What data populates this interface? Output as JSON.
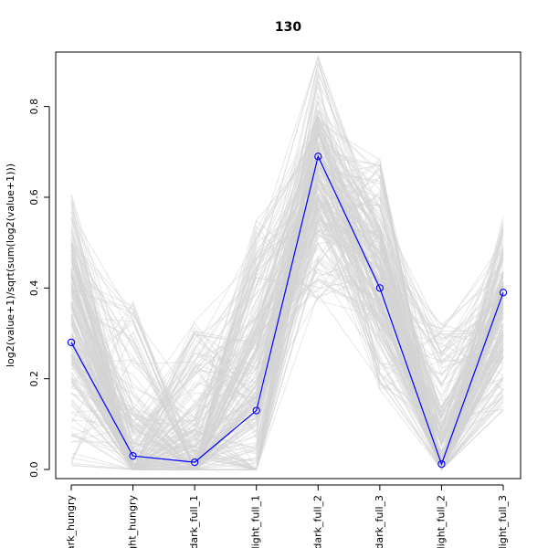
{
  "chart_data": {
    "type": "line",
    "title": "130",
    "xlabel": "",
    "ylabel": "log2(value+1)/sqrt(sum(log2(value+1)))",
    "categories": [
      "dark_hungry",
      "light_hungry",
      "dark_full_1",
      "light_full_1",
      "dark_full_2",
      "dark_full_3",
      "light_full_2",
      "light_full_3"
    ],
    "category_labels_shown": [
      "ark_hungry",
      "ght_hungry",
      "dark_full_1",
      "light_full_1",
      "dark_full_2",
      "dark_full_3",
      "light_full_2",
      "light_full_3"
    ],
    "ylim": [
      -0.02,
      0.92
    ],
    "yticks": [
      0.0,
      0.2,
      0.4,
      0.6,
      0.8
    ],
    "ytick_labels": [
      "0.0",
      "0.2",
      "0.4",
      "0.6",
      "0.8"
    ],
    "grid": false,
    "legend": "none",
    "highlight_series": {
      "color": "#0000ff",
      "marker": "open-circle",
      "values": [
        0.28,
        0.03,
        0.016,
        0.13,
        0.69,
        0.4,
        0.012,
        0.39
      ]
    },
    "background_series": {
      "color": "#d3d3d3",
      "count": 220,
      "value_ranges": [
        [
          0.0,
          0.61
        ],
        [
          0.0,
          0.37
        ],
        [
          0.0,
          0.33
        ],
        [
          0.0,
          0.55
        ],
        [
          0.37,
          0.92
        ],
        [
          0.17,
          0.69
        ],
        [
          0.0,
          0.32
        ],
        [
          0.13,
          0.56
        ]
      ],
      "typical_values": [
        0.36,
        0.06,
        0.04,
        0.22,
        0.66,
        0.42,
        0.07,
        0.34
      ]
    }
  }
}
